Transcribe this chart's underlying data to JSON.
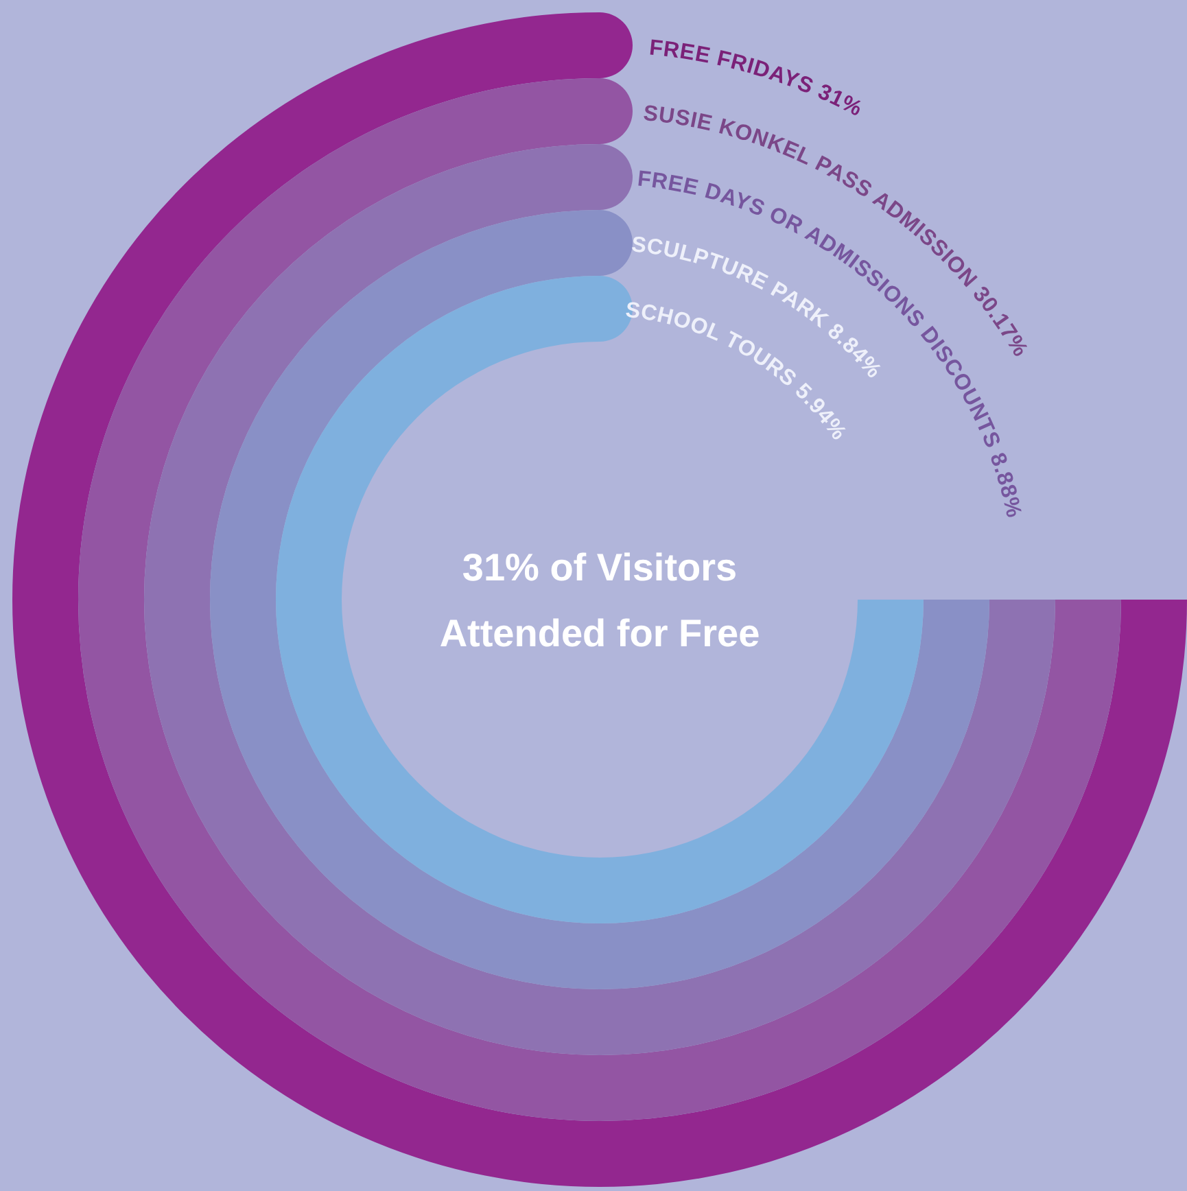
{
  "chart_data": {
    "type": "other",
    "title": "31% of Visitors Attended for Free",
    "categories": [
      "FREE FRIDAYS",
      "SUSIE KONKEL PASS ADMISSION",
      "FREE DAYS OR ADMISSIONS DISCOUNTS",
      "SCULPTURE PARK",
      "SCHOOL TOURS"
    ],
    "values": [
      31,
      30.17,
      8.88,
      8.84,
      5.94
    ],
    "value_labels": [
      "31%",
      "30.17%",
      "8.88%",
      "8.84%",
      "5.94%"
    ],
    "colors": [
      "#93278f",
      "#9355a3",
      "#8e72b2",
      "#8990c6",
      "#7fb0de"
    ]
  }
}
